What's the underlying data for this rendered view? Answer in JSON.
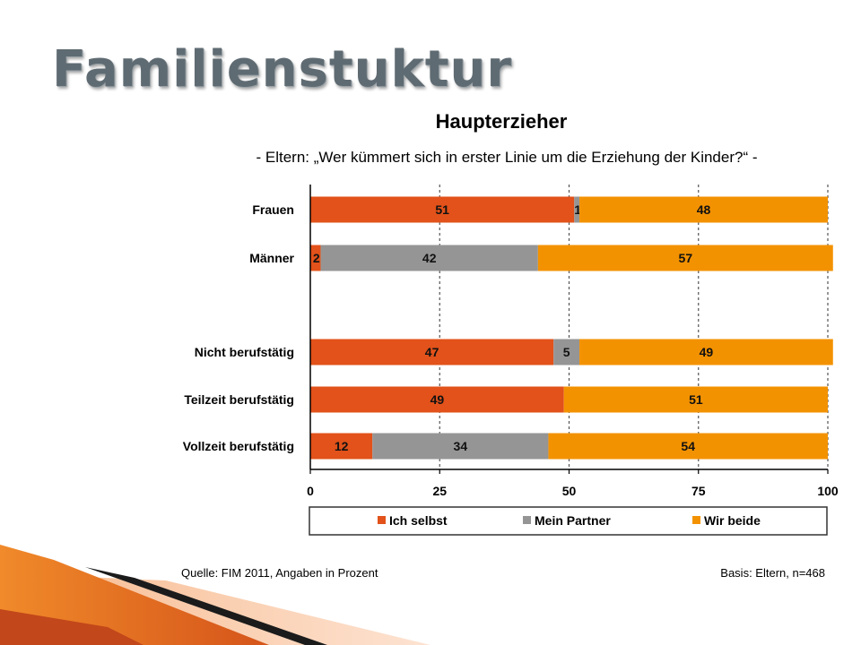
{
  "slide": {
    "title": "Familienstuktur"
  },
  "chart_data": {
    "type": "bar",
    "stacked": true,
    "orientation": "horizontal",
    "title": "Haupterzieher",
    "subtitle": "- Eltern: „Wer kümmert sich in erster Linie um die Erziehung der Kinder?“ -",
    "categories": [
      "Frauen",
      "Männer",
      "Nicht berufstätig",
      "Teilzeit berufstätig",
      "Vollzeit berufstätig"
    ],
    "series": [
      {
        "name": "Ich selbst",
        "color": "#e2521a",
        "values": [
          51,
          2,
          47,
          49,
          12
        ]
      },
      {
        "name": "Mein Partner",
        "color": "#959595",
        "values": [
          1,
          42,
          5,
          null,
          34
        ]
      },
      {
        "name": "Wir beide",
        "color": "#f39200",
        "values": [
          48,
          57,
          49,
          51,
          54
        ]
      }
    ],
    "xlim": [
      0,
      100
    ],
    "xticks": [
      0,
      25,
      50,
      75,
      100
    ],
    "grid": "dashed vertical lines",
    "legend_position": "bottom",
    "source": "Quelle: FIM 2011,  Angaben in Prozent",
    "basis": "Basis: Eltern, n=468"
  }
}
